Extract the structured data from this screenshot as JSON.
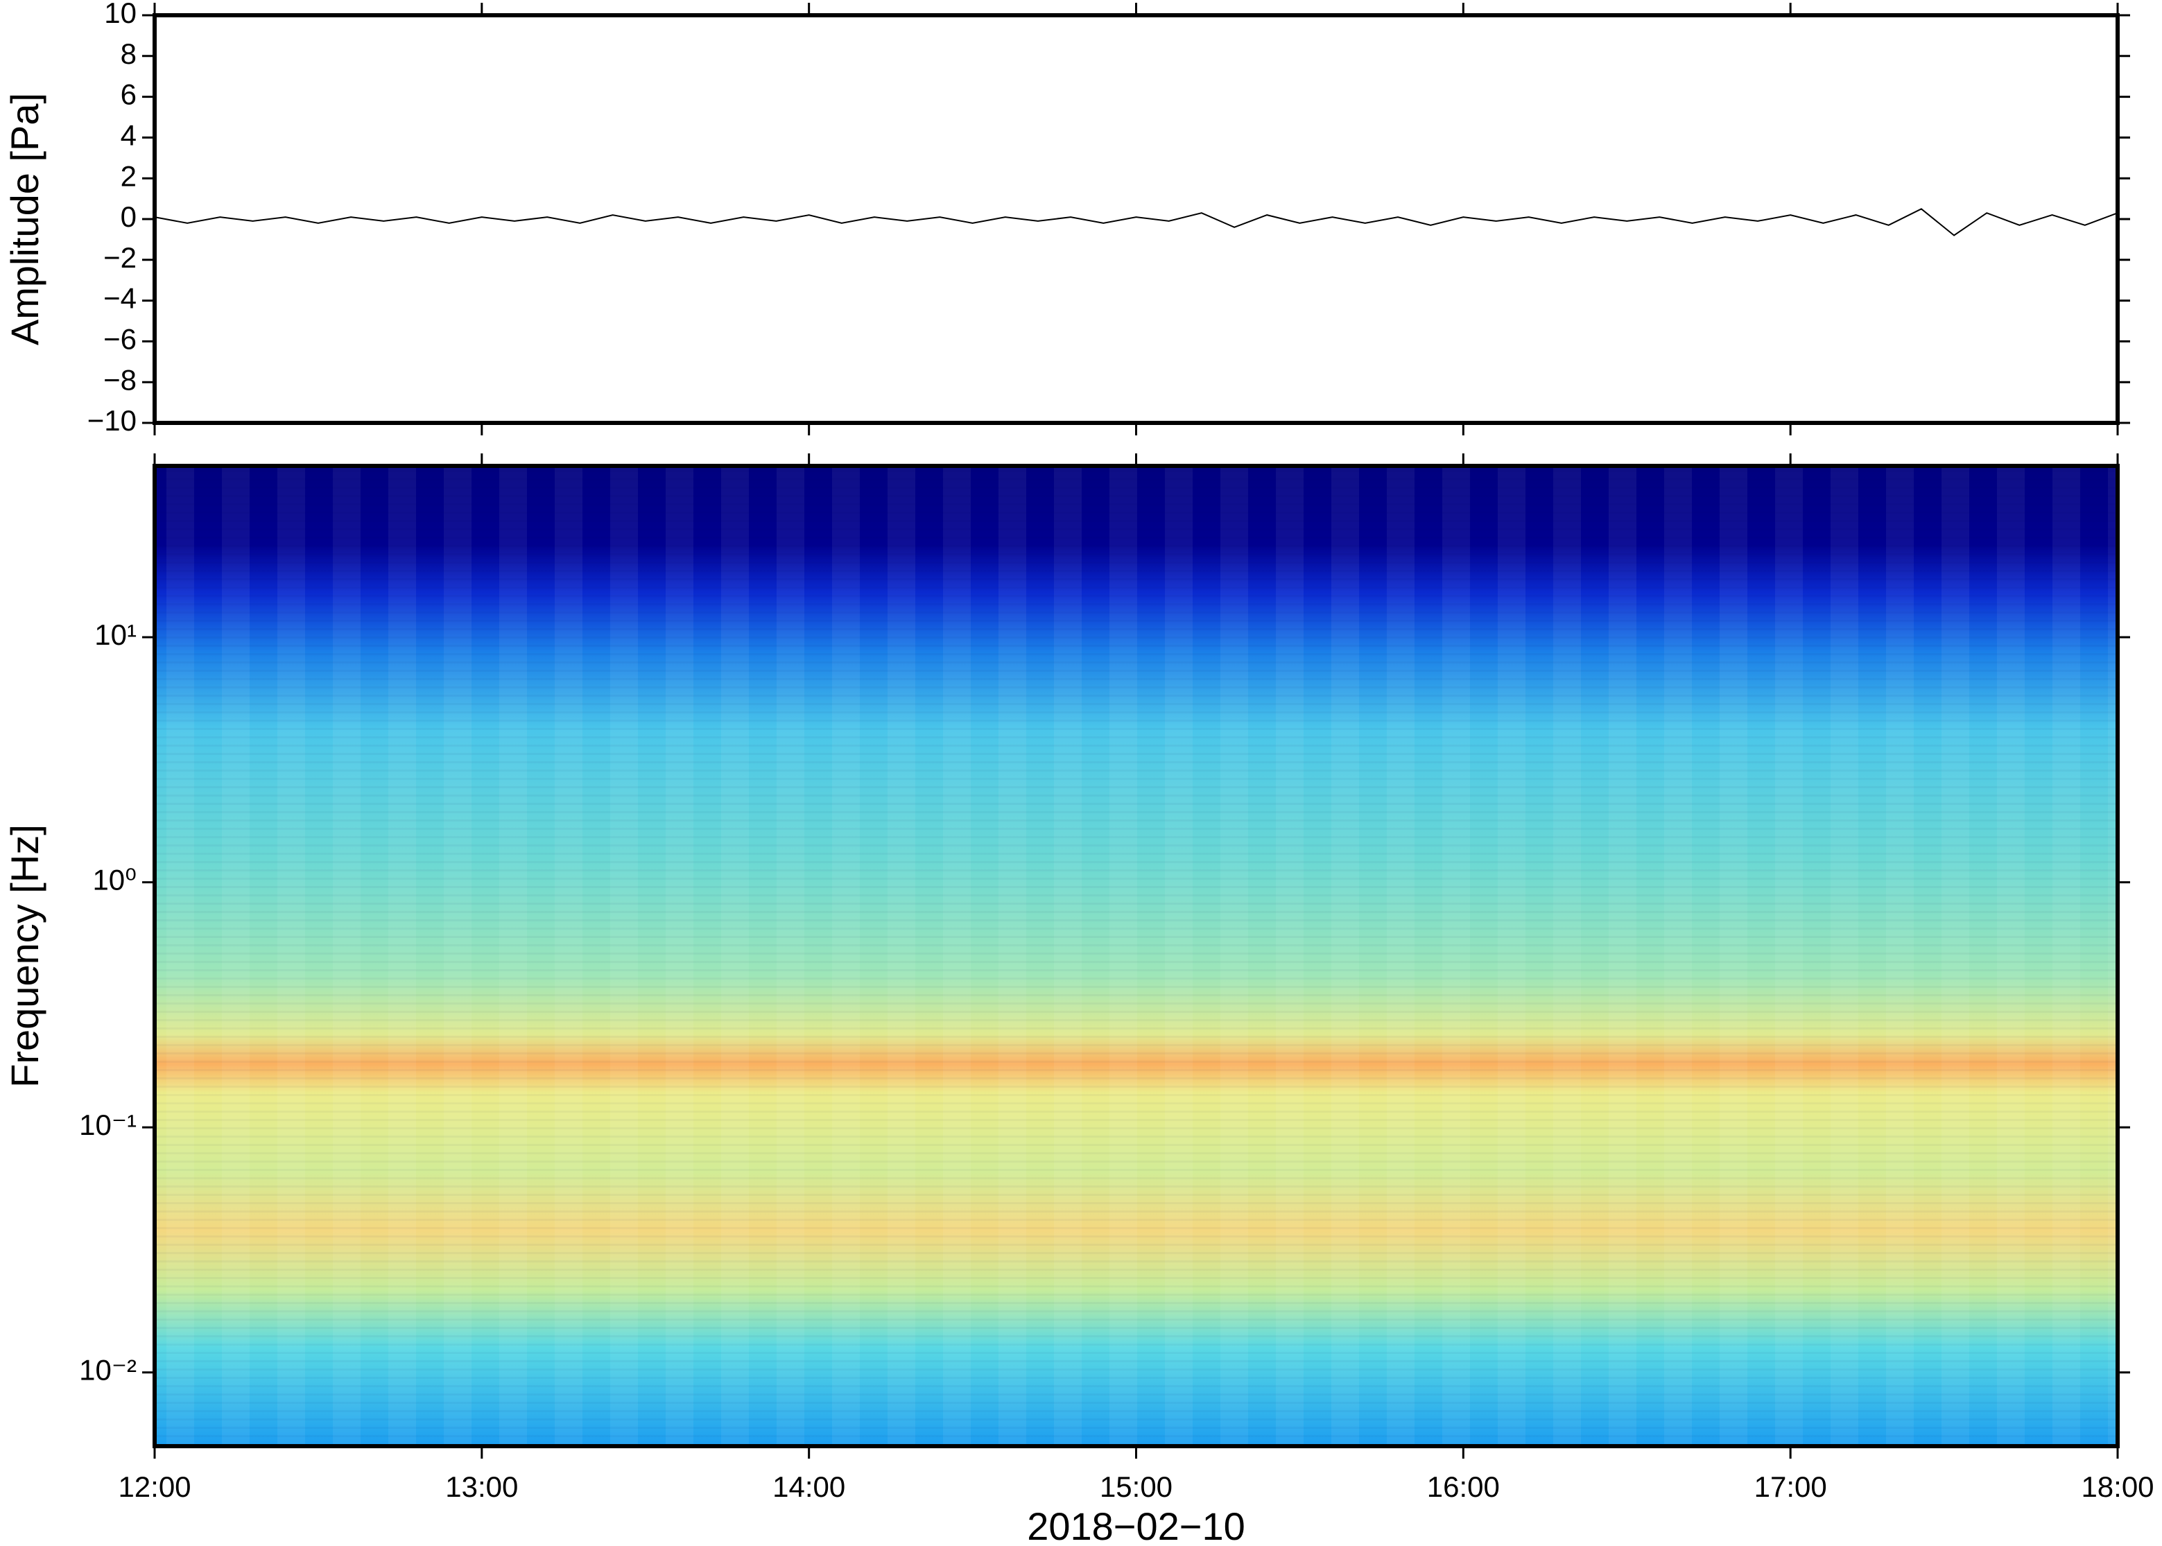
{
  "chart_data": [
    {
      "type": "line",
      "ylabel": "Amplitude [Pa]",
      "xlim": [
        12,
        18
      ],
      "xticks": [
        12,
        13,
        14,
        15,
        16,
        17,
        18
      ],
      "ylim": [
        -10,
        10
      ],
      "yticks": [
        {
          "value": -10,
          "label": "−10"
        },
        {
          "value": -8,
          "label": "−8"
        },
        {
          "value": -6,
          "label": "−6"
        },
        {
          "value": -4,
          "label": "−4"
        },
        {
          "value": -2,
          "label": "−2"
        },
        0,
        2,
        4,
        6,
        8,
        10
      ],
      "x": [
        12.0,
        12.1,
        12.2,
        12.3,
        12.4,
        12.5,
        12.6,
        12.7,
        12.8,
        12.9,
        13.0,
        13.1,
        13.2,
        13.3,
        13.4,
        13.5,
        13.6,
        13.7,
        13.8,
        13.9,
        14.0,
        14.1,
        14.2,
        14.3,
        14.4,
        14.5,
        14.6,
        14.7,
        14.8,
        14.9,
        15.0,
        15.1,
        15.2,
        15.3,
        15.4,
        15.5,
        15.6,
        15.7,
        15.8,
        15.9,
        16.0,
        16.1,
        16.2,
        16.3,
        16.4,
        16.5,
        16.6,
        16.7,
        16.8,
        16.9,
        17.0,
        17.1,
        17.2,
        17.3,
        17.4,
        17.5,
        17.6,
        17.7,
        17.8,
        17.9,
        18.0
      ],
      "series": [
        {
          "color": "#000000",
          "values": [
            0.1,
            -0.2,
            0.1,
            -0.1,
            0.1,
            -0.2,
            0.1,
            -0.1,
            0.1,
            -0.2,
            0.1,
            -0.1,
            0.1,
            -0.2,
            0.2,
            -0.1,
            0.1,
            -0.2,
            0.1,
            -0.1,
            0.2,
            -0.2,
            0.1,
            -0.1,
            0.1,
            -0.2,
            0.1,
            -0.1,
            0.1,
            -0.2,
            0.1,
            -0.1,
            0.3,
            -0.4,
            0.2,
            -0.2,
            0.1,
            -0.2,
            0.1,
            -0.3,
            0.1,
            -0.1,
            0.1,
            -0.2,
            0.1,
            -0.1,
            0.1,
            -0.2,
            0.1,
            -0.1,
            0.2,
            -0.2,
            0.2,
            -0.3,
            0.5,
            -0.8,
            0.3,
            -0.3,
            0.2,
            -0.3,
            0.3
          ]
        }
      ]
    },
    {
      "type": "heatmap",
      "ylabel": "Frequency [Hz]",
      "xlabel": "2018−02−10",
      "xlim": [
        12,
        18
      ],
      "xticks": [
        {
          "value": 12,
          "label": "12:00"
        },
        {
          "value": 13,
          "label": "13:00"
        },
        {
          "value": 14,
          "label": "14:00"
        },
        {
          "value": 15,
          "label": "15:00"
        },
        {
          "value": 16,
          "label": "16:00"
        },
        {
          "value": 17,
          "label": "17:00"
        },
        {
          "value": 18,
          "label": "18:00"
        }
      ],
      "ylim": [
        0.005,
        50
      ],
      "log_y": true,
      "yticks": [
        {
          "value": 0.01,
          "label": "10⁻²"
        },
        {
          "value": 0.1,
          "label": "10⁻¹"
        },
        {
          "value": 1,
          "label": "10⁰"
        },
        {
          "value": 10,
          "label": "10¹"
        }
      ]
    }
  ]
}
